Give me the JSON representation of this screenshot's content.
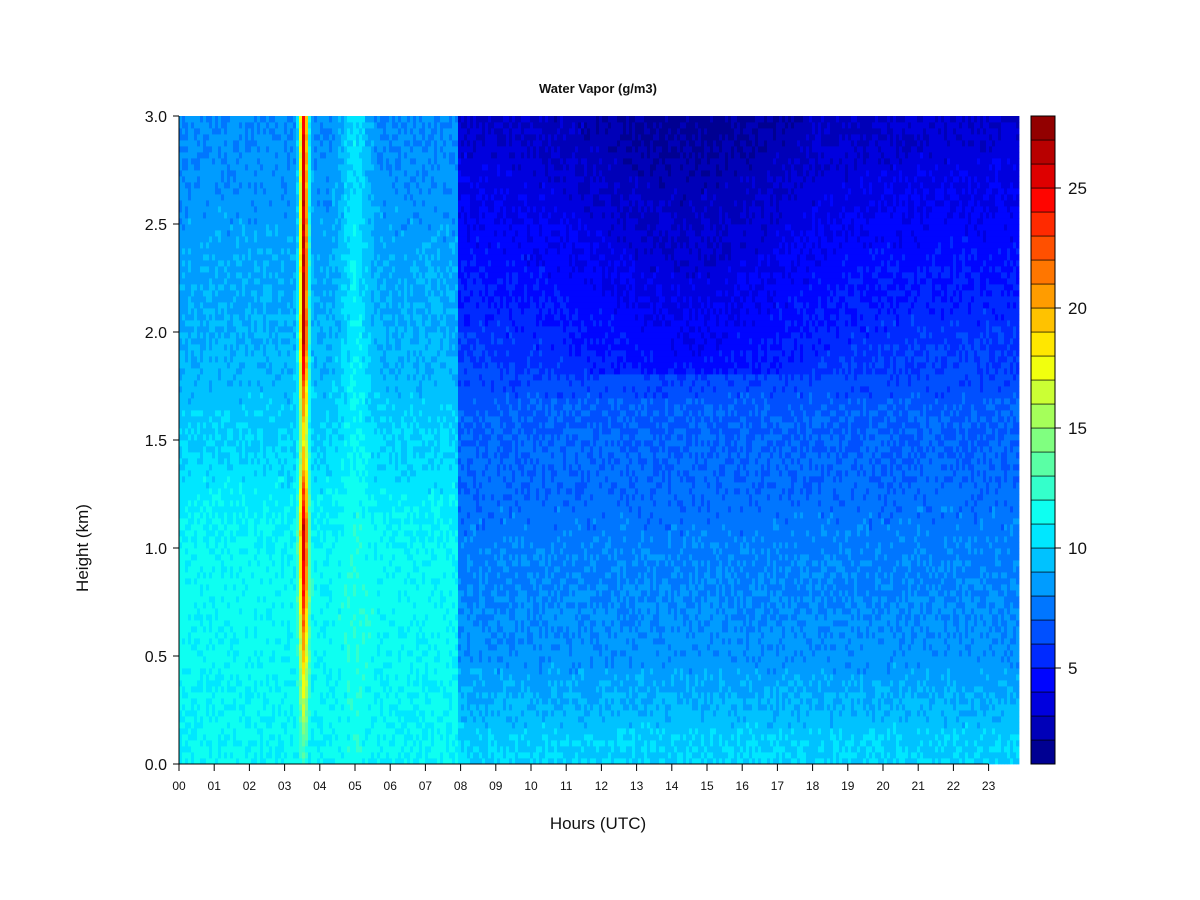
{
  "chart_data": {
    "type": "heatmap",
    "title": "Water Vapor (g/m3)",
    "xlabel": "Hours (UTC)",
    "ylabel": "Height (km)",
    "xlim": [
      0,
      24
    ],
    "ylim": [
      0.0,
      3.0
    ],
    "x_ticks": [
      "00",
      "01",
      "02",
      "03",
      "04",
      "05",
      "06",
      "07",
      "08",
      "09",
      "10",
      "11",
      "12",
      "13",
      "14",
      "15",
      "16",
      "17",
      "18",
      "19",
      "20",
      "21",
      "22",
      "23"
    ],
    "y_ticks": [
      "0.0",
      "0.5",
      "1.0",
      "1.5",
      "2.0",
      "2.5",
      "3.0"
    ],
    "colorbar": {
      "min": 1,
      "max": 28,
      "ticks": [
        "5",
        "10",
        "15",
        "20",
        "25"
      ],
      "levels": 27
    },
    "features": [
      {
        "name": "moist plume",
        "hour_center": 3.55,
        "hour_halfwidth": 0.12,
        "peak_values_by_height": [
          [
            0.0,
            12
          ],
          [
            0.8,
            24
          ],
          [
            1.1,
            26
          ],
          [
            1.5,
            18
          ],
          [
            2.0,
            27
          ],
          [
            3.0,
            25
          ]
        ]
      },
      {
        "name": "secondary moist band",
        "hour_center": 5.0,
        "hour_halfwidth": 0.4,
        "peak_value": 12
      },
      {
        "name": "drying transition",
        "hour": 7.9
      }
    ],
    "regimes": [
      {
        "hours": [
          0,
          7.9
        ],
        "surface_value": 11,
        "top_value": 8
      },
      {
        "hours": [
          7.9,
          24
        ],
        "surface_value": 9,
        "top_value": 3
      }
    ]
  }
}
